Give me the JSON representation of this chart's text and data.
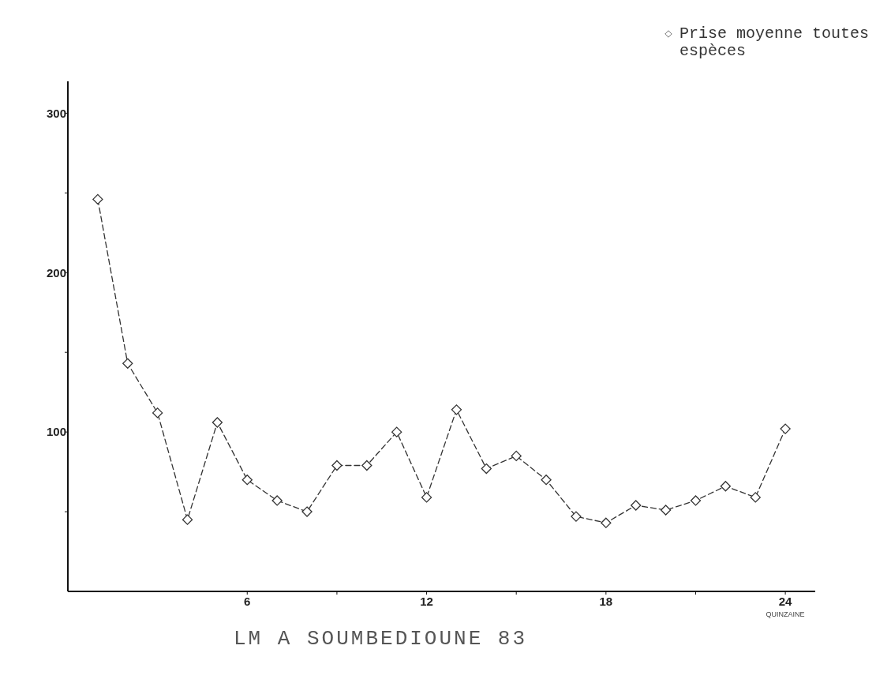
{
  "chart_data": {
    "type": "line",
    "title": "LM A SOUMBEDIOUNE 83",
    "xlabel": "QUINZAINE",
    "x": [
      1,
      2,
      3,
      4,
      5,
      6,
      7,
      8,
      9,
      10,
      11,
      12,
      13,
      14,
      15,
      16,
      17,
      18,
      19,
      20,
      21,
      22,
      23,
      24
    ],
    "series": [
      {
        "name": "Prise moyenne toutes espèces",
        "color": "#333333",
        "values": [
          246,
          143,
          112,
          45,
          106,
          70,
          57,
          50,
          79,
          79,
          100,
          59,
          114,
          77,
          85,
          70,
          47,
          43,
          54,
          51,
          57,
          66,
          59,
          102
        ]
      }
    ],
    "xlim": [
      0,
      25
    ],
    "xticks": [
      6,
      {
        "value": 9,
        "label": null
      },
      12,
      {
        "value": 15,
        "label": null
      },
      18,
      {
        "value": 21,
        "label": null
      },
      24
    ],
    "ylim": [
      0,
      320
    ],
    "yticks": [
      {
        "value": 50,
        "label": null
      },
      100,
      {
        "value": 150,
        "label": null
      },
      200,
      {
        "value": 250,
        "label": null
      },
      300
    ],
    "grid": false,
    "legend": "top right",
    "marker": "diamond",
    "line_style": "dashed"
  }
}
